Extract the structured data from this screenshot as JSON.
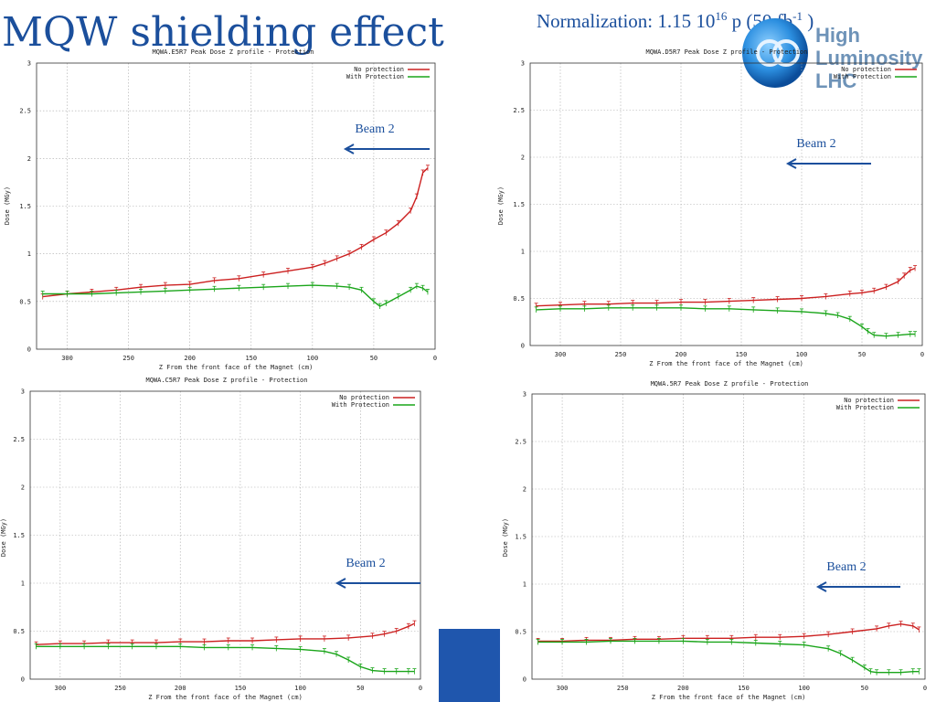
{
  "slide": {
    "title": "MQW shielding effect",
    "normalization": {
      "prefix": "Normalization: 1.15  10",
      "exp1": "16",
      "mid": " p (50 fb",
      "exp2": "-1",
      "suffix": " )"
    },
    "logo": {
      "line1": "High",
      "line2": "Luminosity",
      "line3": "LHC"
    }
  },
  "colors": {
    "title": "#1b4f9c",
    "no_protection": "#cc2020",
    "with_protection": "#1aa51a",
    "beam": "#1b4f9c",
    "grid": "#aaaaaa",
    "accent_block": "#1f56ad"
  },
  "chart_data": [
    {
      "type": "line",
      "title": "MQWA.E5R7 Peak Dose Z profile - Protection",
      "xlabel": "Z From the front face of the Magnet (cm)",
      "ylabel": "Dose (MGy)",
      "xlim": [
        325,
        0
      ],
      "ylim": [
        0,
        3
      ],
      "xticks": [
        "300",
        "250",
        "200",
        "150",
        "100",
        "50",
        "0"
      ],
      "yticks": [
        "0",
        "0.5",
        "1",
        "1.5",
        "2",
        "2.5",
        "3"
      ],
      "grid": true,
      "legend": "top-right",
      "annotation": "Beam 2",
      "series": [
        {
          "name": "No protection",
          "x": [
            320,
            300,
            280,
            260,
            240,
            220,
            200,
            180,
            160,
            140,
            120,
            100,
            90,
            80,
            70,
            60,
            50,
            40,
            30,
            20,
            15,
            10,
            6
          ],
          "y": [
            0.55,
            0.58,
            0.6,
            0.62,
            0.65,
            0.67,
            0.68,
            0.72,
            0.74,
            0.78,
            0.82,
            0.86,
            0.9,
            0.95,
            1.0,
            1.07,
            1.15,
            1.22,
            1.32,
            1.45,
            1.6,
            1.85,
            1.9
          ]
        },
        {
          "name": "With Protection",
          "x": [
            320,
            300,
            280,
            260,
            240,
            220,
            200,
            180,
            160,
            140,
            120,
            100,
            80,
            70,
            60,
            50,
            45,
            40,
            30,
            20,
            15,
            10,
            6
          ],
          "y": [
            0.58,
            0.58,
            0.58,
            0.59,
            0.6,
            0.61,
            0.62,
            0.63,
            0.64,
            0.65,
            0.66,
            0.67,
            0.66,
            0.65,
            0.62,
            0.5,
            0.45,
            0.48,
            0.55,
            0.62,
            0.66,
            0.64,
            0.6
          ]
        }
      ]
    },
    {
      "type": "line",
      "title": "MQWA.D5R7 Peak Dose Z profile - Protection",
      "xlabel": "Z From the front face of the Magnet (cm)",
      "ylabel": "Dose (MGy)",
      "xlim": [
        325,
        0
      ],
      "ylim": [
        0,
        3
      ],
      "xticks": [
        "300",
        "250",
        "200",
        "150",
        "100",
        "50",
        "0"
      ],
      "yticks": [
        "0",
        "0.5",
        "1",
        "1.5",
        "2",
        "2.5",
        "3"
      ],
      "grid": true,
      "legend": "top-right",
      "annotation": "Beam 2",
      "series": [
        {
          "name": "No protection",
          "x": [
            320,
            300,
            280,
            260,
            240,
            220,
            200,
            180,
            160,
            140,
            120,
            100,
            80,
            60,
            50,
            40,
            30,
            20,
            15,
            10,
            6
          ],
          "y": [
            0.42,
            0.43,
            0.44,
            0.44,
            0.45,
            0.45,
            0.46,
            0.46,
            0.47,
            0.48,
            0.49,
            0.5,
            0.52,
            0.55,
            0.56,
            0.58,
            0.62,
            0.68,
            0.74,
            0.8,
            0.82
          ]
        },
        {
          "name": "With Protection",
          "x": [
            320,
            300,
            280,
            260,
            240,
            220,
            200,
            180,
            160,
            140,
            120,
            100,
            80,
            70,
            60,
            50,
            45,
            40,
            30,
            20,
            10,
            6
          ],
          "y": [
            0.38,
            0.39,
            0.39,
            0.4,
            0.4,
            0.4,
            0.4,
            0.39,
            0.39,
            0.38,
            0.37,
            0.36,
            0.34,
            0.32,
            0.28,
            0.2,
            0.15,
            0.11,
            0.1,
            0.11,
            0.12,
            0.12
          ]
        }
      ]
    },
    {
      "type": "line",
      "title": "MQWA.C5R7 Peak Dose Z profile - Protection",
      "xlabel": "Z From the front face of the Magnet (cm)",
      "ylabel": "Dose (MGy)",
      "xlim": [
        325,
        0
      ],
      "ylim": [
        0,
        3
      ],
      "xticks": [
        "300",
        "250",
        "200",
        "150",
        "100",
        "50",
        "0"
      ],
      "yticks": [
        "0",
        "0.5",
        "1",
        "1.5",
        "2",
        "2.5",
        "3"
      ],
      "grid": true,
      "legend": "top-right",
      "annotation": "Beam 2",
      "series": [
        {
          "name": "No protection",
          "x": [
            320,
            300,
            280,
            260,
            240,
            220,
            200,
            180,
            160,
            140,
            120,
            100,
            80,
            60,
            40,
            30,
            20,
            10,
            5
          ],
          "y": [
            0.36,
            0.37,
            0.37,
            0.38,
            0.38,
            0.38,
            0.39,
            0.39,
            0.4,
            0.4,
            0.41,
            0.42,
            0.42,
            0.43,
            0.45,
            0.47,
            0.5,
            0.55,
            0.58
          ]
        },
        {
          "name": "With Protection",
          "x": [
            320,
            300,
            280,
            260,
            240,
            220,
            200,
            180,
            160,
            140,
            120,
            100,
            80,
            70,
            60,
            50,
            40,
            30,
            20,
            10,
            5
          ],
          "y": [
            0.34,
            0.34,
            0.34,
            0.34,
            0.34,
            0.34,
            0.34,
            0.33,
            0.33,
            0.33,
            0.32,
            0.31,
            0.29,
            0.26,
            0.2,
            0.13,
            0.09,
            0.08,
            0.08,
            0.08,
            0.08
          ]
        }
      ]
    },
    {
      "type": "line",
      "title": "MQWA.5R7 Peak Dose Z profile - Protection",
      "xlabel": "Z From the front face of the Magnet (cm)",
      "ylabel": "Dose (MGy)",
      "xlim": [
        325,
        0
      ],
      "ylim": [
        0,
        3
      ],
      "xticks": [
        "300",
        "250",
        "200",
        "150",
        "100",
        "50",
        "0"
      ],
      "yticks": [
        "0",
        "0.5",
        "1",
        "1.5",
        "2",
        "2.5",
        "3"
      ],
      "grid": true,
      "legend": "top-right",
      "annotation": "Beam 2",
      "series": [
        {
          "name": "No protection",
          "x": [
            320,
            300,
            280,
            260,
            240,
            220,
            200,
            180,
            160,
            140,
            120,
            100,
            80,
            60,
            40,
            30,
            20,
            10,
            5
          ],
          "y": [
            0.4,
            0.4,
            0.41,
            0.41,
            0.42,
            0.42,
            0.43,
            0.43,
            0.43,
            0.44,
            0.44,
            0.45,
            0.47,
            0.5,
            0.53,
            0.56,
            0.58,
            0.56,
            0.52
          ]
        },
        {
          "name": "With Protection",
          "x": [
            320,
            300,
            280,
            260,
            240,
            220,
            200,
            180,
            160,
            140,
            120,
            100,
            80,
            70,
            60,
            50,
            45,
            40,
            30,
            20,
            10,
            5
          ],
          "y": [
            0.39,
            0.39,
            0.39,
            0.4,
            0.4,
            0.4,
            0.4,
            0.39,
            0.39,
            0.38,
            0.37,
            0.36,
            0.32,
            0.27,
            0.2,
            0.12,
            0.08,
            0.07,
            0.07,
            0.07,
            0.08,
            0.08
          ]
        }
      ]
    }
  ]
}
